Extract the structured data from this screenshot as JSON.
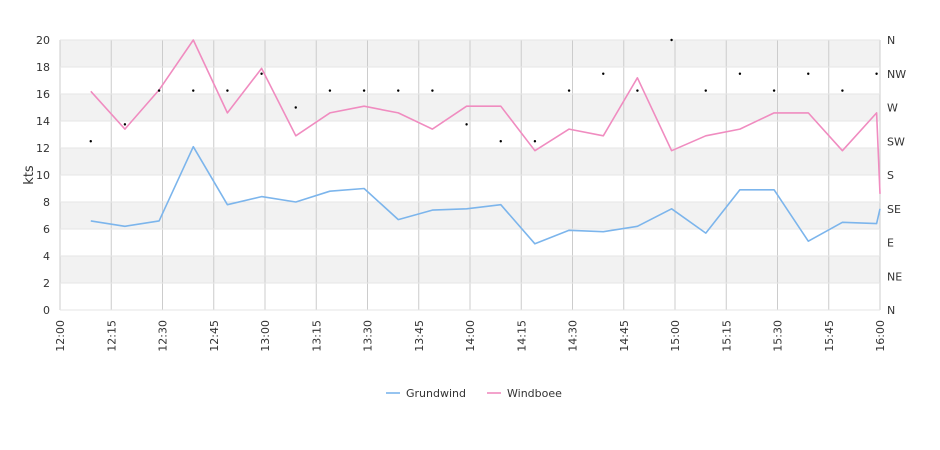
{
  "chart_data": {
    "type": "line",
    "ylabel": "kts",
    "ylim": [
      0,
      20
    ],
    "y_ticks": [
      "0",
      "2",
      "4",
      "6",
      "8",
      "10",
      "12",
      "14",
      "16",
      "18",
      "20"
    ],
    "x_range": [
      "12:00",
      "16:00"
    ],
    "x_ticks": [
      "12:00",
      "12:15",
      "12:30",
      "12:45",
      "13:00",
      "13:15",
      "13:30",
      "13:45",
      "14:00",
      "14:15",
      "14:30",
      "14:45",
      "15:00",
      "15:15",
      "15:30",
      "15:45",
      "16:00"
    ],
    "y2_ticks": [
      "N",
      "NE",
      "E",
      "SE",
      "S",
      "SW",
      "W",
      "NW",
      "N"
    ],
    "grid": true,
    "legend_position": "bottom",
    "colors": {
      "Grundwind": "#7cb5ec",
      "Windboee": "#f08cc0",
      "direction": "#000000",
      "band": "#f2f2f2",
      "grid": "#cccccc"
    },
    "x": [
      "12:09",
      "12:19",
      "12:29",
      "12:39",
      "12:49",
      "12:59",
      "13:09",
      "13:19",
      "13:29",
      "13:39",
      "13:49",
      "13:59",
      "14:09",
      "14:19",
      "14:29",
      "14:39",
      "14:49",
      "14:59",
      "15:09",
      "15:19",
      "15:29",
      "15:39",
      "15:49",
      "15:59",
      "16:00"
    ],
    "series": [
      {
        "name": "Grundwind",
        "values": [
          6.6,
          6.2,
          6.6,
          12.1,
          7.8,
          8.4,
          8.0,
          8.8,
          9.0,
          6.7,
          7.4,
          7.5,
          7.8,
          4.9,
          5.9,
          5.8,
          6.2,
          7.5,
          5.7,
          8.9,
          8.9,
          5.1,
          6.5,
          6.4,
          7.5
        ]
      },
      {
        "name": "Windboee",
        "values": [
          16.2,
          13.4,
          16.3,
          20.0,
          14.6,
          17.9,
          12.9,
          14.6,
          15.1,
          14.6,
          13.4,
          15.1,
          15.1,
          11.8,
          13.4,
          12.9,
          17.2,
          11.8,
          12.9,
          13.4,
          14.6,
          14.6,
          11.8,
          14.6,
          8.6
        ]
      }
    ],
    "direction_deg": [
      225,
      247.5,
      292.5,
      292.5,
      292.5,
      315,
      270,
      292.5,
      292.5,
      292.5,
      292.5,
      247.5,
      225,
      225,
      292.5,
      315,
      292.5,
      360,
      292.5,
      315,
      292.5,
      315,
      292.5,
      315
    ]
  }
}
